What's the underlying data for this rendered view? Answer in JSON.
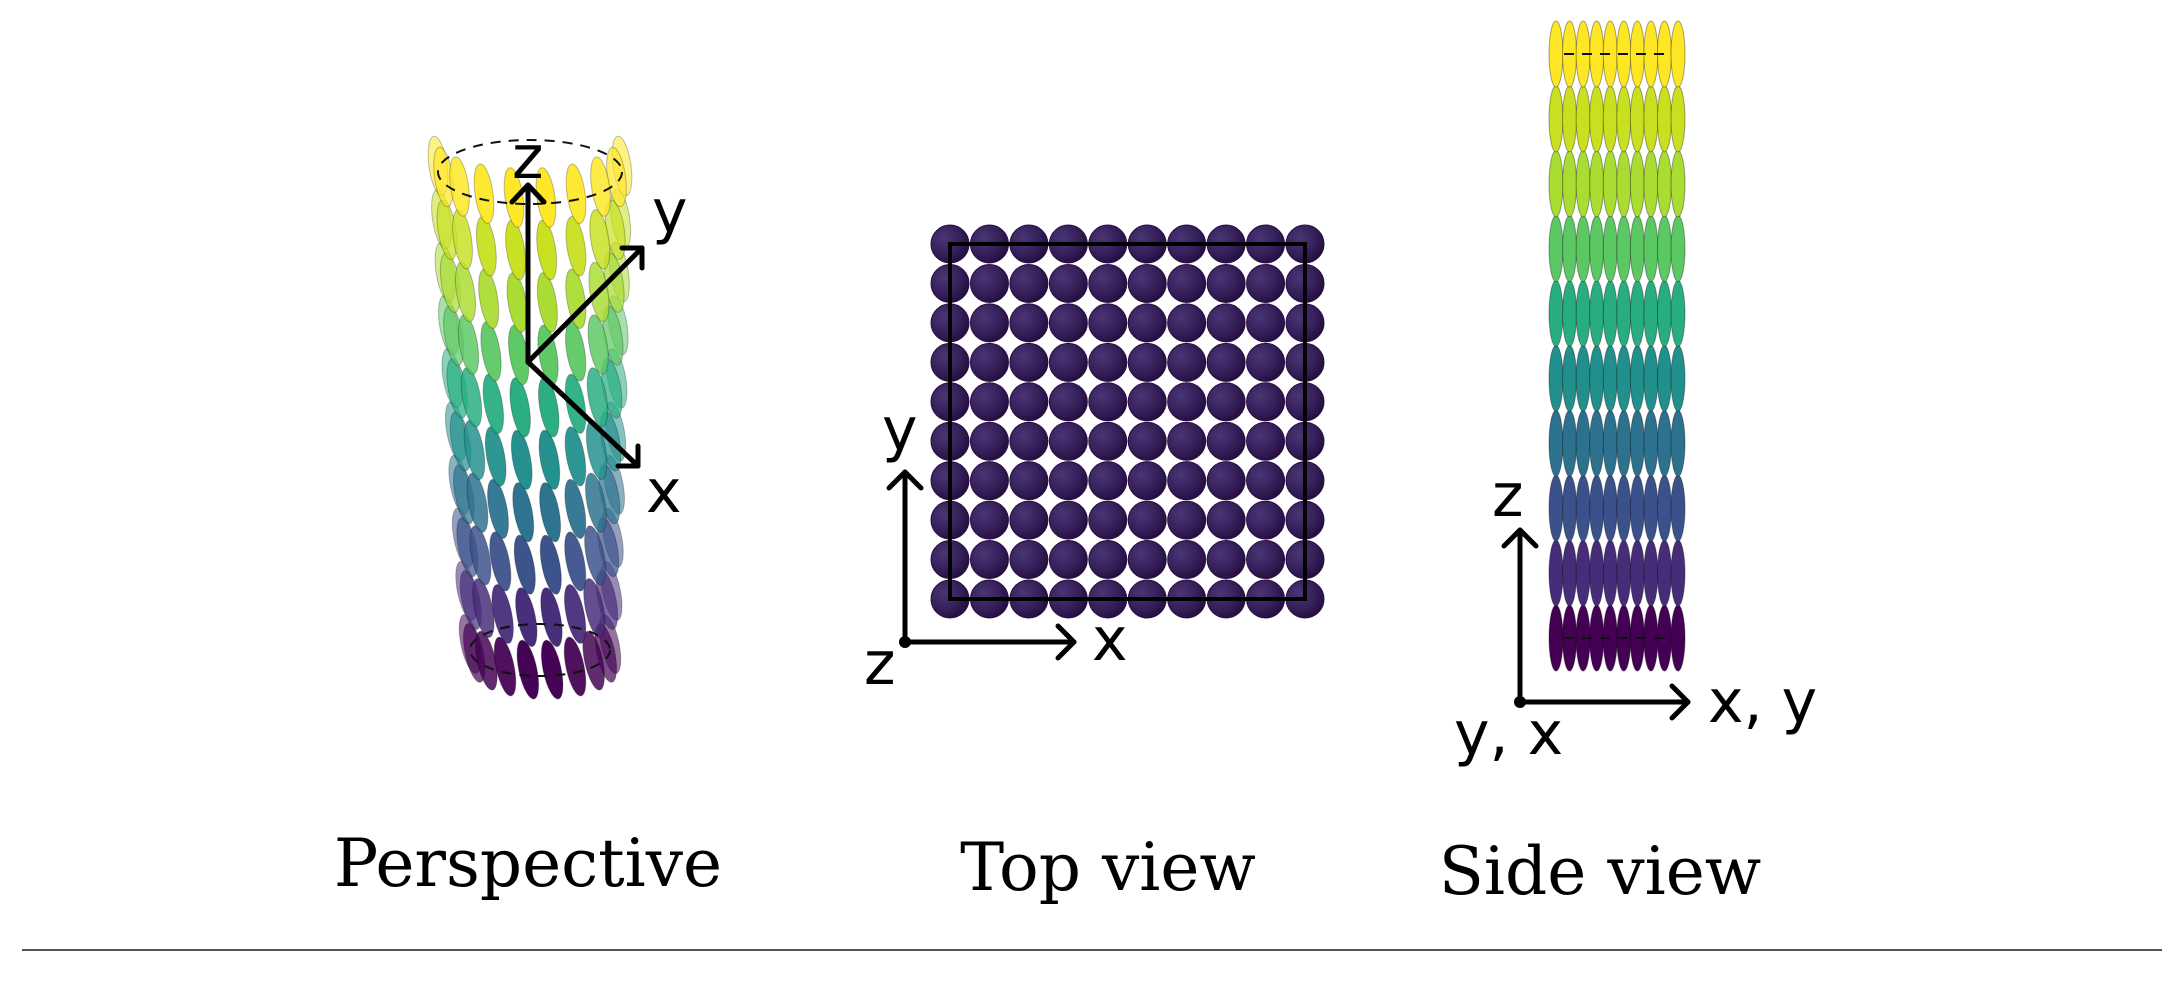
{
  "panels": [
    {
      "id": "perspective",
      "caption": "Perspective",
      "axes": {
        "vertical": "z",
        "diagonal": "y",
        "lateral": "x"
      }
    },
    {
      "id": "top",
      "caption": "Top view",
      "axes": {
        "vertical": "y",
        "horizontal": "x",
        "origin": "z"
      },
      "grid": {
        "columns": 10,
        "rows": 10
      }
    },
    {
      "id": "side",
      "caption": "Side view",
      "axes": {
        "vertical": "z",
        "horizontal": "x, y",
        "origin": "y, x"
      },
      "grid": {
        "columns": 10,
        "layers": 10
      }
    }
  ],
  "colors": {
    "viridis_layers_bottom_to_top": [
      "#440154",
      "#472c7a",
      "#3b518b",
      "#2c718e",
      "#21908d",
      "#27ad81",
      "#5cc863",
      "#aadc32",
      "#c8e020",
      "#fde725"
    ],
    "top_view_particle": "#3a1f5c",
    "top_view_particle_dark": "#2a0f45"
  }
}
